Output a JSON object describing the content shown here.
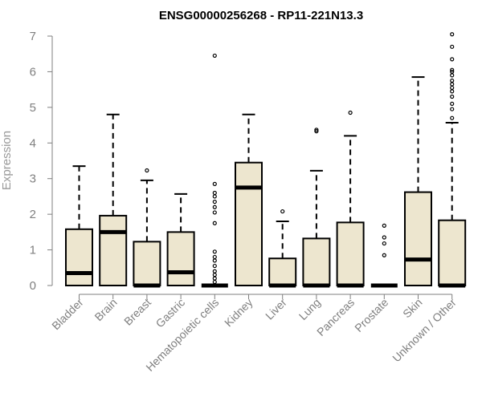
{
  "chart_data": {
    "type": "boxplot",
    "title": "ENSG00000256268 - RP11-221N13.3",
    "ylabel": "Expression",
    "xlabel": "",
    "ylim": [
      0,
      7
    ],
    "yticks": [
      0,
      1,
      2,
      3,
      4,
      5,
      6,
      7
    ],
    "grid": false,
    "colors": {
      "box_fill": "#ede6cf",
      "box_stroke": "#000000",
      "axis": "#7f7f7f"
    },
    "categories": [
      "Bladder",
      "Brain",
      "Breast",
      "Gastric",
      "Hematopoietic cells",
      "Kidney",
      "Liver",
      "Lung",
      "Pancreas",
      "Prostate",
      "Skin",
      "Unknown / Other"
    ],
    "boxes": [
      {
        "name": "Bladder",
        "whisker_low": 0,
        "q1": 0,
        "median": 0.35,
        "q3": 1.58,
        "whisker_high": 3.35,
        "outliers": []
      },
      {
        "name": "Brain",
        "whisker_low": 0,
        "q1": 0,
        "median": 1.5,
        "q3": 1.96,
        "whisker_high": 4.8,
        "outliers": []
      },
      {
        "name": "Breast",
        "whisker_low": 0,
        "q1": 0,
        "median": 0,
        "q3": 1.23,
        "whisker_high": 2.95,
        "outliers": [
          3.23
        ]
      },
      {
        "name": "Gastric",
        "whisker_low": 0,
        "q1": 0,
        "median": 0.37,
        "q3": 1.5,
        "whisker_high": 2.57,
        "outliers": []
      },
      {
        "name": "Hematopoietic cells",
        "whisker_low": 0,
        "q1": 0,
        "median": 0,
        "q3": 0,
        "whisker_high": 0,
        "outliers": [
          0.1,
          0.2,
          0.3,
          0.4,
          0.55,
          0.7,
          0.8,
          0.95,
          1.75,
          2.05,
          2.2,
          2.35,
          2.5,
          2.6,
          2.85,
          6.45
        ]
      },
      {
        "name": "Kidney",
        "whisker_low": 0,
        "q1": 0,
        "median": 2.75,
        "q3": 3.45,
        "whisker_high": 4.8,
        "outliers": []
      },
      {
        "name": "Liver",
        "whisker_low": 0,
        "q1": 0,
        "median": 0,
        "q3": 0.76,
        "whisker_high": 1.8,
        "outliers": [
          2.08
        ]
      },
      {
        "name": "Lung",
        "whisker_low": 0,
        "q1": 0,
        "median": 0,
        "q3": 1.32,
        "whisker_high": 3.22,
        "outliers": [
          4.33,
          4.37
        ]
      },
      {
        "name": "Pancreas",
        "whisker_low": 0,
        "q1": 0,
        "median": 0,
        "q3": 1.77,
        "whisker_high": 4.2,
        "outliers": [
          4.85
        ]
      },
      {
        "name": "Prostate",
        "whisker_low": 0,
        "q1": 0,
        "median": 0,
        "q3": 0,
        "whisker_high": 0,
        "outliers": [
          0.85,
          1.18,
          1.35,
          1.68
        ]
      },
      {
        "name": "Skin",
        "whisker_low": 0,
        "q1": 0,
        "median": 0.73,
        "q3": 2.62,
        "whisker_high": 5.85,
        "outliers": []
      },
      {
        "name": "Unknown / Other",
        "whisker_low": 0,
        "q1": 0,
        "median": 0,
        "q3": 1.83,
        "whisker_high": 4.57,
        "outliers": [
          4.7,
          4.95,
          5.1,
          5.3,
          5.45,
          5.55,
          5.65,
          5.75,
          5.9,
          6.0,
          6.05,
          6.35,
          6.7,
          7.05
        ]
      }
    ]
  }
}
